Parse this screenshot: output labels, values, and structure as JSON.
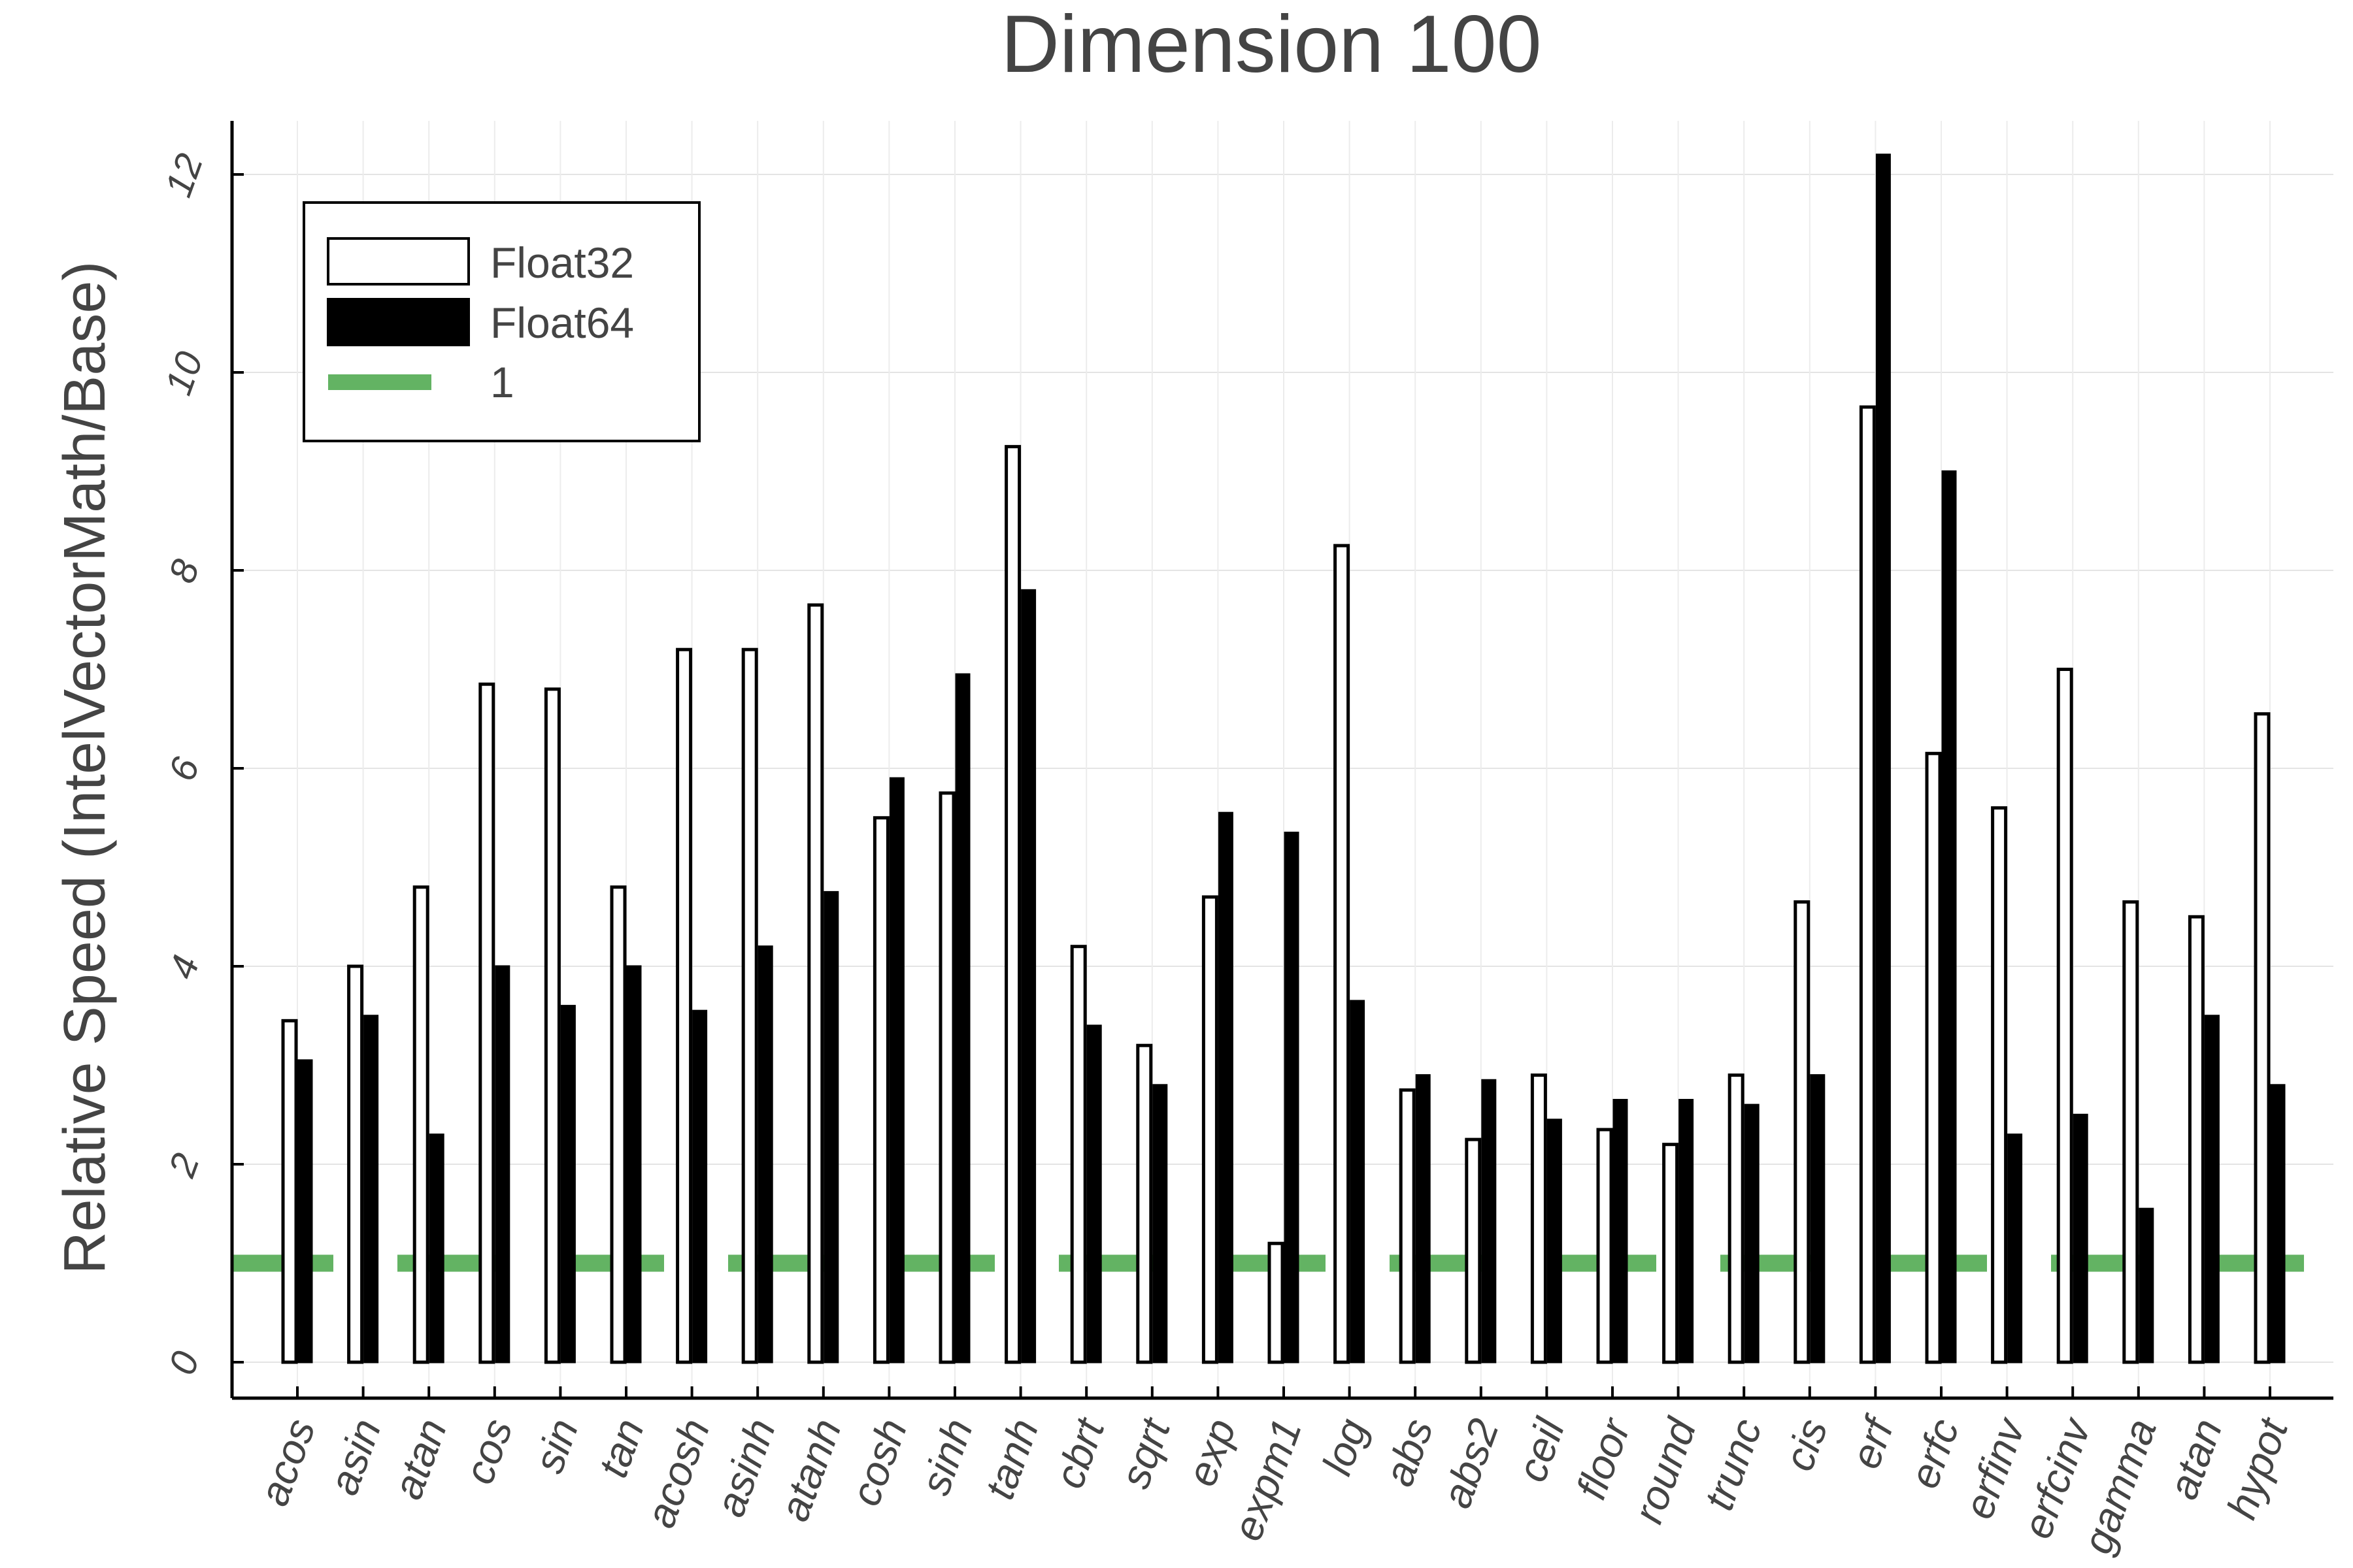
{
  "chart_data": {
    "type": "bar",
    "title": "Dimension 100",
    "xlabel": "",
    "ylabel": "Relative Speed (IntelVectorMath/Base)",
    "ylim": [
      -0.35,
      12.6
    ],
    "yticks": [
      0,
      2,
      4,
      6,
      8,
      10,
      12
    ],
    "grid": true,
    "legend_position": "top-left",
    "categories": [
      "acos",
      "asin",
      "atan",
      "cos",
      "sin",
      "tan",
      "acosh",
      "asinh",
      "atanh",
      "cosh",
      "sinh",
      "tanh",
      "cbrt",
      "sqrt",
      "exp",
      "expm1",
      "log",
      "abs",
      "abs2",
      "ceil",
      "floor",
      "round",
      "trunc",
      "cis",
      "erf",
      "erfc",
      "erfinv",
      "erfcinv",
      "gamma",
      "atan",
      "hypot"
    ],
    "series": [
      {
        "name": "Float32",
        "color": "#ffffff",
        "stroke": "#000000",
        "values": [
          3.45,
          4.0,
          4.8,
          6.85,
          6.8,
          4.8,
          7.2,
          7.2,
          7.65,
          5.5,
          5.75,
          9.25,
          4.2,
          3.2,
          4.7,
          1.2,
          8.25,
          2.75,
          2.25,
          2.9,
          2.35,
          2.2,
          2.9,
          4.65,
          9.65,
          6.15,
          5.6,
          7.0,
          4.65,
          4.5,
          6.55
        ]
      },
      {
        "name": "Float64",
        "color": "#000000",
        "values": [
          3.05,
          3.5,
          2.3,
          4.0,
          3.6,
          4.0,
          3.55,
          4.2,
          4.75,
          5.9,
          6.95,
          7.8,
          3.4,
          2.8,
          5.55,
          5.35,
          3.65,
          2.9,
          2.85,
          2.45,
          2.65,
          2.65,
          2.6,
          2.9,
          12.2,
          9.0,
          2.3,
          2.5,
          1.55,
          3.5,
          2.8
        ]
      },
      {
        "name": "1",
        "type": "reference-line",
        "value": 1,
        "color": "#63b363"
      }
    ]
  }
}
